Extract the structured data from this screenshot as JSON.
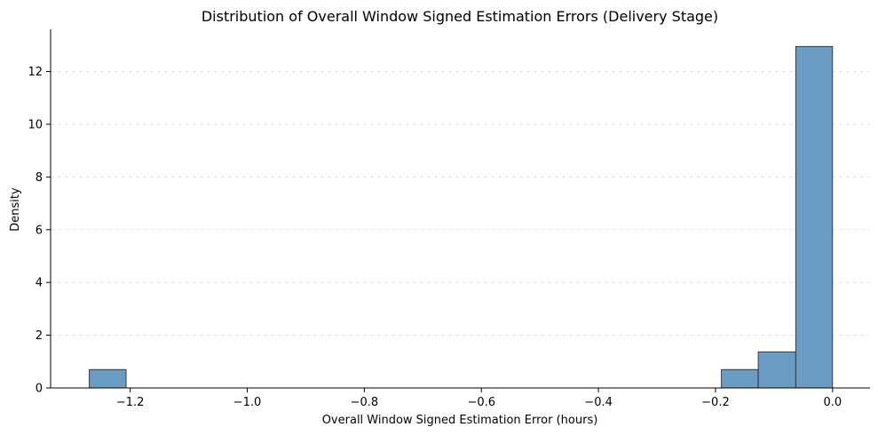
{
  "chart_data": {
    "type": "bar",
    "title": "Distribution of Overall Window Signed Estimation Errors (Delivery Stage)",
    "xlabel": "Overall Window Signed Estimation Error (hours)",
    "ylabel": "Density",
    "xlim": [
      -1.336,
      0.064
    ],
    "ylim": [
      0,
      13.6
    ],
    "x_ticks": [
      -1.2,
      -1.0,
      -0.8,
      -0.6,
      -0.4,
      -0.2,
      0.0
    ],
    "x_tick_labels": [
      "−1.2",
      "−1.0",
      "−0.8",
      "−0.6",
      "−0.4",
      "−0.2",
      "0.0"
    ],
    "y_ticks": [
      0,
      2,
      4,
      6,
      8,
      10,
      12
    ],
    "y_tick_labels": [
      "0",
      "2",
      "4",
      "6",
      "8",
      "10",
      "12"
    ],
    "grid": "y-dashed",
    "bar_color": "#6a9bc3",
    "bins": [
      {
        "x0": -1.27,
        "x1": -1.207,
        "value": 0.7
      },
      {
        "x0": -0.19,
        "x1": -0.127,
        "value": 0.7
      },
      {
        "x0": -0.127,
        "x1": -0.063,
        "value": 1.37
      },
      {
        "x0": -0.063,
        "x1": 0.0,
        "value": 12.95
      }
    ]
  }
}
